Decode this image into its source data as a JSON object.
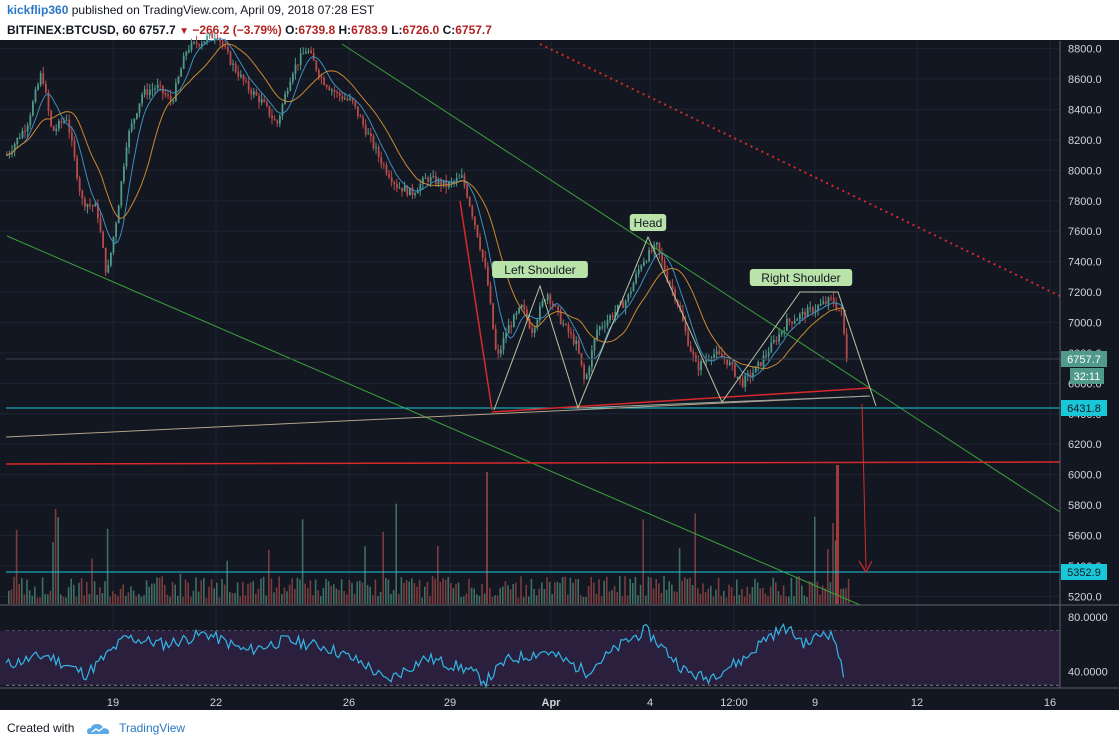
{
  "header": {
    "author": "kickflip360",
    "published_text": "published on TradingView.com, April 09, 2018 07:28 EST",
    "symbol": "BITFINEX:BTCUSD, 60",
    "last": "6757.7",
    "change": "−266.2 (−3.79%)",
    "open_label": "O:",
    "open_value": "6739.8",
    "high_label": "H:",
    "high_value": "6783.9",
    "low_label": "L:",
    "low_value": "6726.0",
    "close_label": "C:",
    "close_value": "6757.7"
  },
  "footer": {
    "created_with": "Created with",
    "brand": "TradingView"
  },
  "colors": {
    "background": "#131722",
    "grid": "#1e2330",
    "up": "#4f9a8a",
    "down": "#b84a4a",
    "ma_fast": "#3b8fbf",
    "ma_slow": "#c9882f",
    "trend_green": "#3aa13a",
    "trend_red": "#d62a2a",
    "support_cyan": "#19c8d8",
    "rsi_line": "#33b6e6",
    "rsi_band": "#2a1f3d"
  },
  "chart_data": {
    "type": "candlestick",
    "ylim": [
      5150,
      8850
    ],
    "y_ticks": [
      "8800.0",
      "8600.0",
      "8400.0",
      "8200.0",
      "8000.0",
      "7800.0",
      "7600.0",
      "7400.0",
      "7200.0",
      "7000.0",
      "6800.0",
      "6600.0",
      "6400.0",
      "6200.0",
      "6000.0",
      "5800.0",
      "5600.0",
      "5400.0",
      "5200.0"
    ],
    "x_ticks": [
      "19",
      "22",
      "26",
      "29",
      "Apr",
      "4",
      "12:00",
      "9",
      "12",
      "16"
    ],
    "price_path": [
      [
        0,
        8100
      ],
      [
        20,
        8300
      ],
      [
        35,
        8650
      ],
      [
        45,
        8250
      ],
      [
        60,
        8350
      ],
      [
        75,
        7800
      ],
      [
        90,
        7750
      ],
      [
        100,
        7300
      ],
      [
        110,
        7700
      ],
      [
        120,
        8200
      ],
      [
        135,
        8500
      ],
      [
        150,
        8550
      ],
      [
        165,
        8450
      ],
      [
        180,
        8800
      ],
      [
        195,
        8850
      ],
      [
        210,
        8900
      ],
      [
        225,
        8700
      ],
      [
        240,
        8550
      ],
      [
        255,
        8450
      ],
      [
        270,
        8300
      ],
      [
        285,
        8650
      ],
      [
        300,
        8800
      ],
      [
        315,
        8600
      ],
      [
        330,
        8500
      ],
      [
        345,
        8450
      ],
      [
        360,
        8250
      ],
      [
        375,
        8050
      ],
      [
        390,
        7900
      ],
      [
        405,
        7850
      ],
      [
        420,
        7950
      ],
      [
        440,
        7900
      ],
      [
        455,
        7950
      ],
      [
        460,
        7850
      ],
      [
        470,
        7600
      ],
      [
        480,
        7300
      ],
      [
        490,
        6750
      ],
      [
        500,
        6950
      ],
      [
        515,
        7100
      ],
      [
        525,
        6950
      ],
      [
        540,
        7200
      ],
      [
        555,
        7000
      ],
      [
        570,
        6850
      ],
      [
        578,
        6600
      ],
      [
        590,
        6950
      ],
      [
        605,
        7050
      ],
      [
        620,
        7150
      ],
      [
        635,
        7400
      ],
      [
        650,
        7500
      ],
      [
        660,
        7300
      ],
      [
        670,
        7150
      ],
      [
        680,
        6900
      ],
      [
        690,
        6700
      ],
      [
        705,
        6800
      ],
      [
        720,
        6750
      ],
      [
        735,
        6600
      ],
      [
        750,
        6700
      ],
      [
        765,
        6850
      ],
      [
        780,
        7000
      ],
      [
        795,
        7050
      ],
      [
        810,
        7100
      ],
      [
        825,
        7150
      ],
      [
        835,
        7050
      ],
      [
        840,
        6757.7
      ]
    ],
    "annotations": [
      {
        "label": "Left Shoulder",
        "price": 7250
      },
      {
        "label": "Head",
        "price": 7560
      },
      {
        "label": "Right Shoulder",
        "price": 7200
      }
    ],
    "price_labels": [
      {
        "text": "6757.7",
        "kind": "last"
      },
      {
        "text": "32:11",
        "kind": "timer"
      },
      {
        "text": "6431.8",
        "kind": "support"
      },
      {
        "text": "5352.9",
        "kind": "target"
      }
    ],
    "rsi": {
      "ylim": [
        28,
        88
      ],
      "y_ticks": [
        "80.0000",
        "40.0000"
      ],
      "levels": [
        70,
        30
      ],
      "path": [
        [
          0,
          45
        ],
        [
          40,
          52
        ],
        [
          80,
          38
        ],
        [
          120,
          65
        ],
        [
          160,
          60
        ],
        [
          200,
          68
        ],
        [
          240,
          55
        ],
        [
          280,
          63
        ],
        [
          320,
          58
        ],
        [
          360,
          45
        ],
        [
          380,
          33
        ],
        [
          420,
          50
        ],
        [
          460,
          42
        ],
        [
          480,
          33
        ],
        [
          500,
          48
        ],
        [
          540,
          55
        ],
        [
          580,
          40
        ],
        [
          620,
          62
        ],
        [
          640,
          70
        ],
        [
          680,
          40
        ],
        [
          700,
          35
        ],
        [
          740,
          50
        ],
        [
          760,
          65
        ],
        [
          780,
          72
        ],
        [
          800,
          60
        ],
        [
          820,
          70
        ],
        [
          830,
          62
        ],
        [
          838,
          33
        ]
      ]
    }
  }
}
